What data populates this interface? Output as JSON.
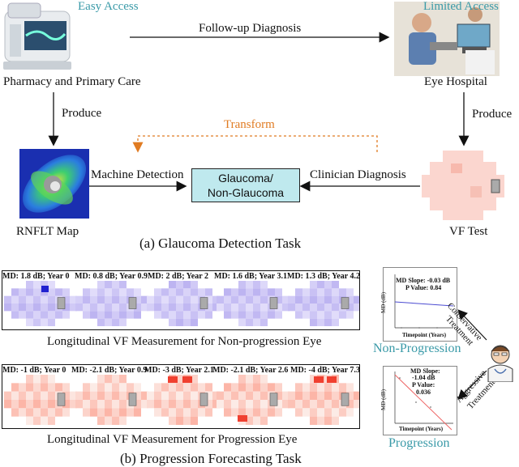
{
  "part_a": {
    "easy_access": "Easy Access",
    "limited_access": "Limited Access",
    "follow_up": "Follow-up Diagnosis",
    "pharmacy": "Pharmacy and Primary Care",
    "eye_hospital": "Eye Hospital",
    "produce_left": "Produce",
    "produce_right": "Produce",
    "transform": "Transform",
    "machine_detection": "Machine Detection",
    "clinician_diagnosis": "Clinician Diagnosis",
    "center_box_line1": "Glaucoma/",
    "center_box_line2": "Non-Glaucoma",
    "rnflt": "RNFLT Map",
    "vftest": "VF Test",
    "caption": "(a)  Glaucoma Detection Task"
  },
  "part_b": {
    "nonprog_labels": [
      "MD: 1.8 dB; Year 0",
      "MD: 0.8 dB; Year 0.9",
      "MD: 2 dB; Year 2",
      "MD: 1.6 dB; Year 3.1",
      "MD: 1.3 dB; Year 4.2"
    ],
    "prog_labels": [
      "MD: -1 dB; Year 0",
      "MD: -2.1 dB; Year 0.9",
      "MD: -3 dB; Year 2.1",
      "MD: -2.1 dB; Year 2.6",
      "MD: -4 dB; Year 7.3"
    ],
    "nonprog_caption": "Longitudinal VF Measurement for Non-progression Eye",
    "prog_caption": "Longitudinal VF Measurement for Progression Eye",
    "nonprog_title": "Non-Progression",
    "prog_title": "Progression",
    "chart1_slope": "MD Slope: -0.03 dB",
    "chart1_p": "P Value: 0.84",
    "chart2_slope": "MD Slope:",
    "chart2_slope_val": "-1.04 dB",
    "chart2_p": "P Value:",
    "chart2_p_val": "0.036",
    "ylabel": "MD (dB)",
    "xlabel": "Timepoint (Years)",
    "conservative": "Conservative",
    "aggressive": "Aggressive",
    "treatment": "Treatment",
    "caption": "(b)  Progression Forecasting Task"
  },
  "colors": {
    "teal": "#3a9aa8",
    "orange": "#e07b22",
    "box": "#bfe9ee"
  }
}
